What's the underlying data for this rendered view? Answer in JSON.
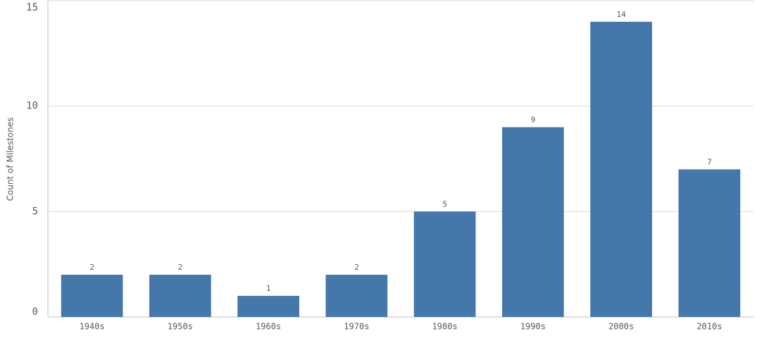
{
  "chart_data": {
    "type": "bar",
    "y_axis_label": "Count of Milestones",
    "categories": [
      "1940s",
      "1950s",
      "1960s",
      "1970s",
      "1980s",
      "1990s",
      "2000s",
      "2010s"
    ],
    "values": [
      2,
      2,
      1,
      2,
      5,
      9,
      14,
      7
    ],
    "color": "#4477aa",
    "ylim": [
      0,
      15
    ],
    "yticks": [
      0,
      5,
      10,
      15
    ],
    "grid": true
  }
}
